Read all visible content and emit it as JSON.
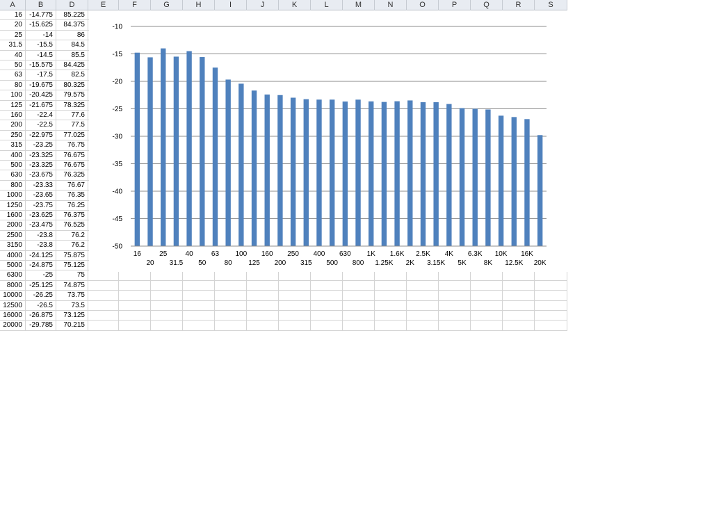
{
  "sheet": {
    "columns": [
      "A",
      "B",
      "D",
      "E",
      "F",
      "G",
      "H",
      "I",
      "J",
      "K",
      "L",
      "M",
      "N",
      "O",
      "P",
      "Q",
      "R",
      "S"
    ],
    "rows": [
      [
        "16",
        "-14.775",
        "85.225"
      ],
      [
        "20",
        "-15.625",
        "84.375"
      ],
      [
        "25",
        "-14",
        "86"
      ],
      [
        "31.5",
        "-15.5",
        "84.5"
      ],
      [
        "40",
        "-14.5",
        "85.5"
      ],
      [
        "50",
        "-15.575",
        "84.425"
      ],
      [
        "63",
        "-17.5",
        "82.5"
      ],
      [
        "80",
        "-19.675",
        "80.325"
      ],
      [
        "100",
        "-20.425",
        "79.575"
      ],
      [
        "125",
        "-21.675",
        "78.325"
      ],
      [
        "160",
        "-22.4",
        "77.6"
      ],
      [
        "200",
        "-22.5",
        "77.5"
      ],
      [
        "250",
        "-22.975",
        "77.025"
      ],
      [
        "315",
        "-23.25",
        "76.75"
      ],
      [
        "400",
        "-23.325",
        "76.675"
      ],
      [
        "500",
        "-23.325",
        "76.675"
      ],
      [
        "630",
        "-23.675",
        "76.325"
      ],
      [
        "800",
        "-23.33",
        "76.67"
      ],
      [
        "1000",
        "-23.65",
        "76.35"
      ],
      [
        "1250",
        "-23.75",
        "76.25"
      ],
      [
        "1600",
        "-23.625",
        "76.375"
      ],
      [
        "2000",
        "-23.475",
        "76.525"
      ],
      [
        "2500",
        "-23.8",
        "76.2"
      ],
      [
        "3150",
        "-23.8",
        "76.2"
      ],
      [
        "4000",
        "-24.125",
        "75.875"
      ],
      [
        "5000",
        "-24.875",
        "75.125"
      ],
      [
        "6300",
        "-25",
        "75"
      ],
      [
        "8000",
        "-25.125",
        "74.875"
      ],
      [
        "10000",
        "-26.25",
        "73.75"
      ],
      [
        "12500",
        "-26.5",
        "73.5"
      ],
      [
        "16000",
        "-26.875",
        "73.125"
      ],
      [
        "20000",
        "-29.785",
        "70.215"
      ]
    ]
  },
  "chart_data": {
    "type": "bar",
    "categories": [
      "16",
      "20",
      "25",
      "31.5",
      "40",
      "50",
      "63",
      "80",
      "100",
      "125",
      "160",
      "200",
      "250",
      "315",
      "400",
      "500",
      "630",
      "800",
      "1K",
      "1.25K",
      "1.6K",
      "2K",
      "2.5K",
      "3.15K",
      "4K",
      "5K",
      "6.3K",
      "8K",
      "10K",
      "12.5K",
      "16K",
      "20K"
    ],
    "values": [
      -14.775,
      -15.625,
      -14,
      -15.5,
      -14.5,
      -15.575,
      -17.5,
      -19.675,
      -20.425,
      -21.675,
      -22.4,
      -22.5,
      -22.975,
      -23.25,
      -23.325,
      -23.325,
      -23.675,
      -23.33,
      -23.65,
      -23.75,
      -23.625,
      -23.475,
      -23.8,
      -23.8,
      -24.125,
      -24.875,
      -25,
      -25.125,
      -26.25,
      -26.5,
      -26.875,
      -29.785
    ],
    "ylim": [
      -50,
      -10
    ],
    "yticks": [
      -10,
      -15,
      -20,
      -25,
      -30,
      -35,
      -40,
      -45,
      -50
    ],
    "bar_color": "#4f81bd",
    "grid": true,
    "legend": "none",
    "title": "",
    "xlabel": "",
    "ylabel": ""
  }
}
